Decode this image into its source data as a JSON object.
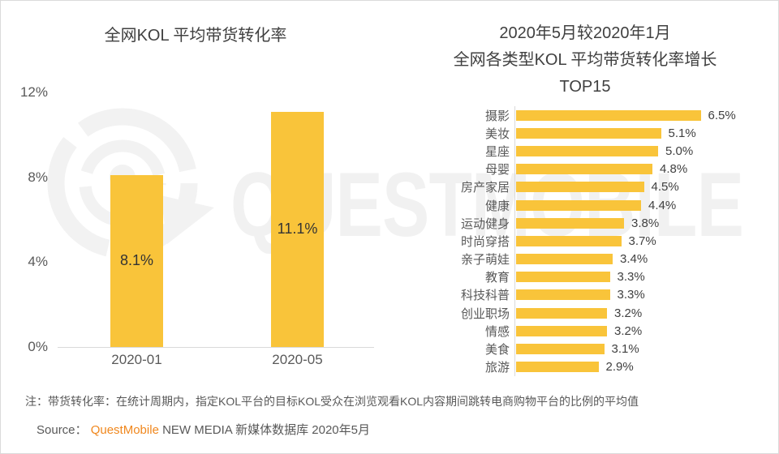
{
  "page": {
    "watermark_text": "QUESTMOBILE",
    "note": "注：带货转化率：在统计周期内，指定KOL平台的目标KOL受众在浏览观看KOL内容期间跳转电商购物平台的比例的平均值",
    "source_prefix": "Source：",
    "source_brand": "QuestMobile",
    "source_suffix": " NEW MEDIA 新媒体数据库 2020年5月"
  },
  "colors": {
    "bar_yellow": "#f9c43a",
    "brand_orange": "#f0871d",
    "title_text": "#404040",
    "secondary_text": "#595959",
    "axis_line": "#d9d9d9",
    "watermark": "#f1f1f1"
  },
  "chart_data": [
    {
      "type": "bar",
      "title": "全网KOL 平均带货转化率",
      "categories": [
        "2020-01",
        "2020-05"
      ],
      "values": [
        8.1,
        11.1
      ],
      "value_labels": [
        "8.1%",
        "11.1%"
      ],
      "xlabel": "",
      "ylabel": "",
      "ylim": [
        0,
        12
      ],
      "yticks": [
        0,
        4,
        8,
        12
      ],
      "ytick_labels": [
        "0%",
        "4%",
        "8%",
        "12%"
      ],
      "grid": false,
      "legend": false
    },
    {
      "type": "bar",
      "orientation": "horizontal",
      "title": "2020年5月较2020年1月 全网各类型KOL 平均带货转化率增长 TOP15",
      "title_lines": [
        "2020年5月较2020年1月",
        "全网各类型KOL 平均带货转化率增长",
        "TOP15"
      ],
      "categories": [
        "摄影",
        "美妆",
        "星座",
        "母婴",
        "房产家居",
        "健康",
        "运动健身",
        "时尚穿搭",
        "亲子萌娃",
        "教育",
        "科技科普",
        "创业职场",
        "情感",
        "美食",
        "旅游"
      ],
      "values": [
        6.5,
        5.1,
        5.0,
        4.8,
        4.5,
        4.4,
        3.8,
        3.7,
        3.4,
        3.3,
        3.3,
        3.2,
        3.2,
        3.1,
        2.9
      ],
      "value_labels": [
        "6.5%",
        "5.1%",
        "5.0%",
        "4.8%",
        "4.5%",
        "4.4%",
        "3.8%",
        "3.7%",
        "3.4%",
        "3.3%",
        "3.3%",
        "3.2%",
        "3.2%",
        "3.1%",
        "2.9%"
      ],
      "xlim": [
        0,
        6.5
      ],
      "grid": false,
      "legend": false
    }
  ]
}
